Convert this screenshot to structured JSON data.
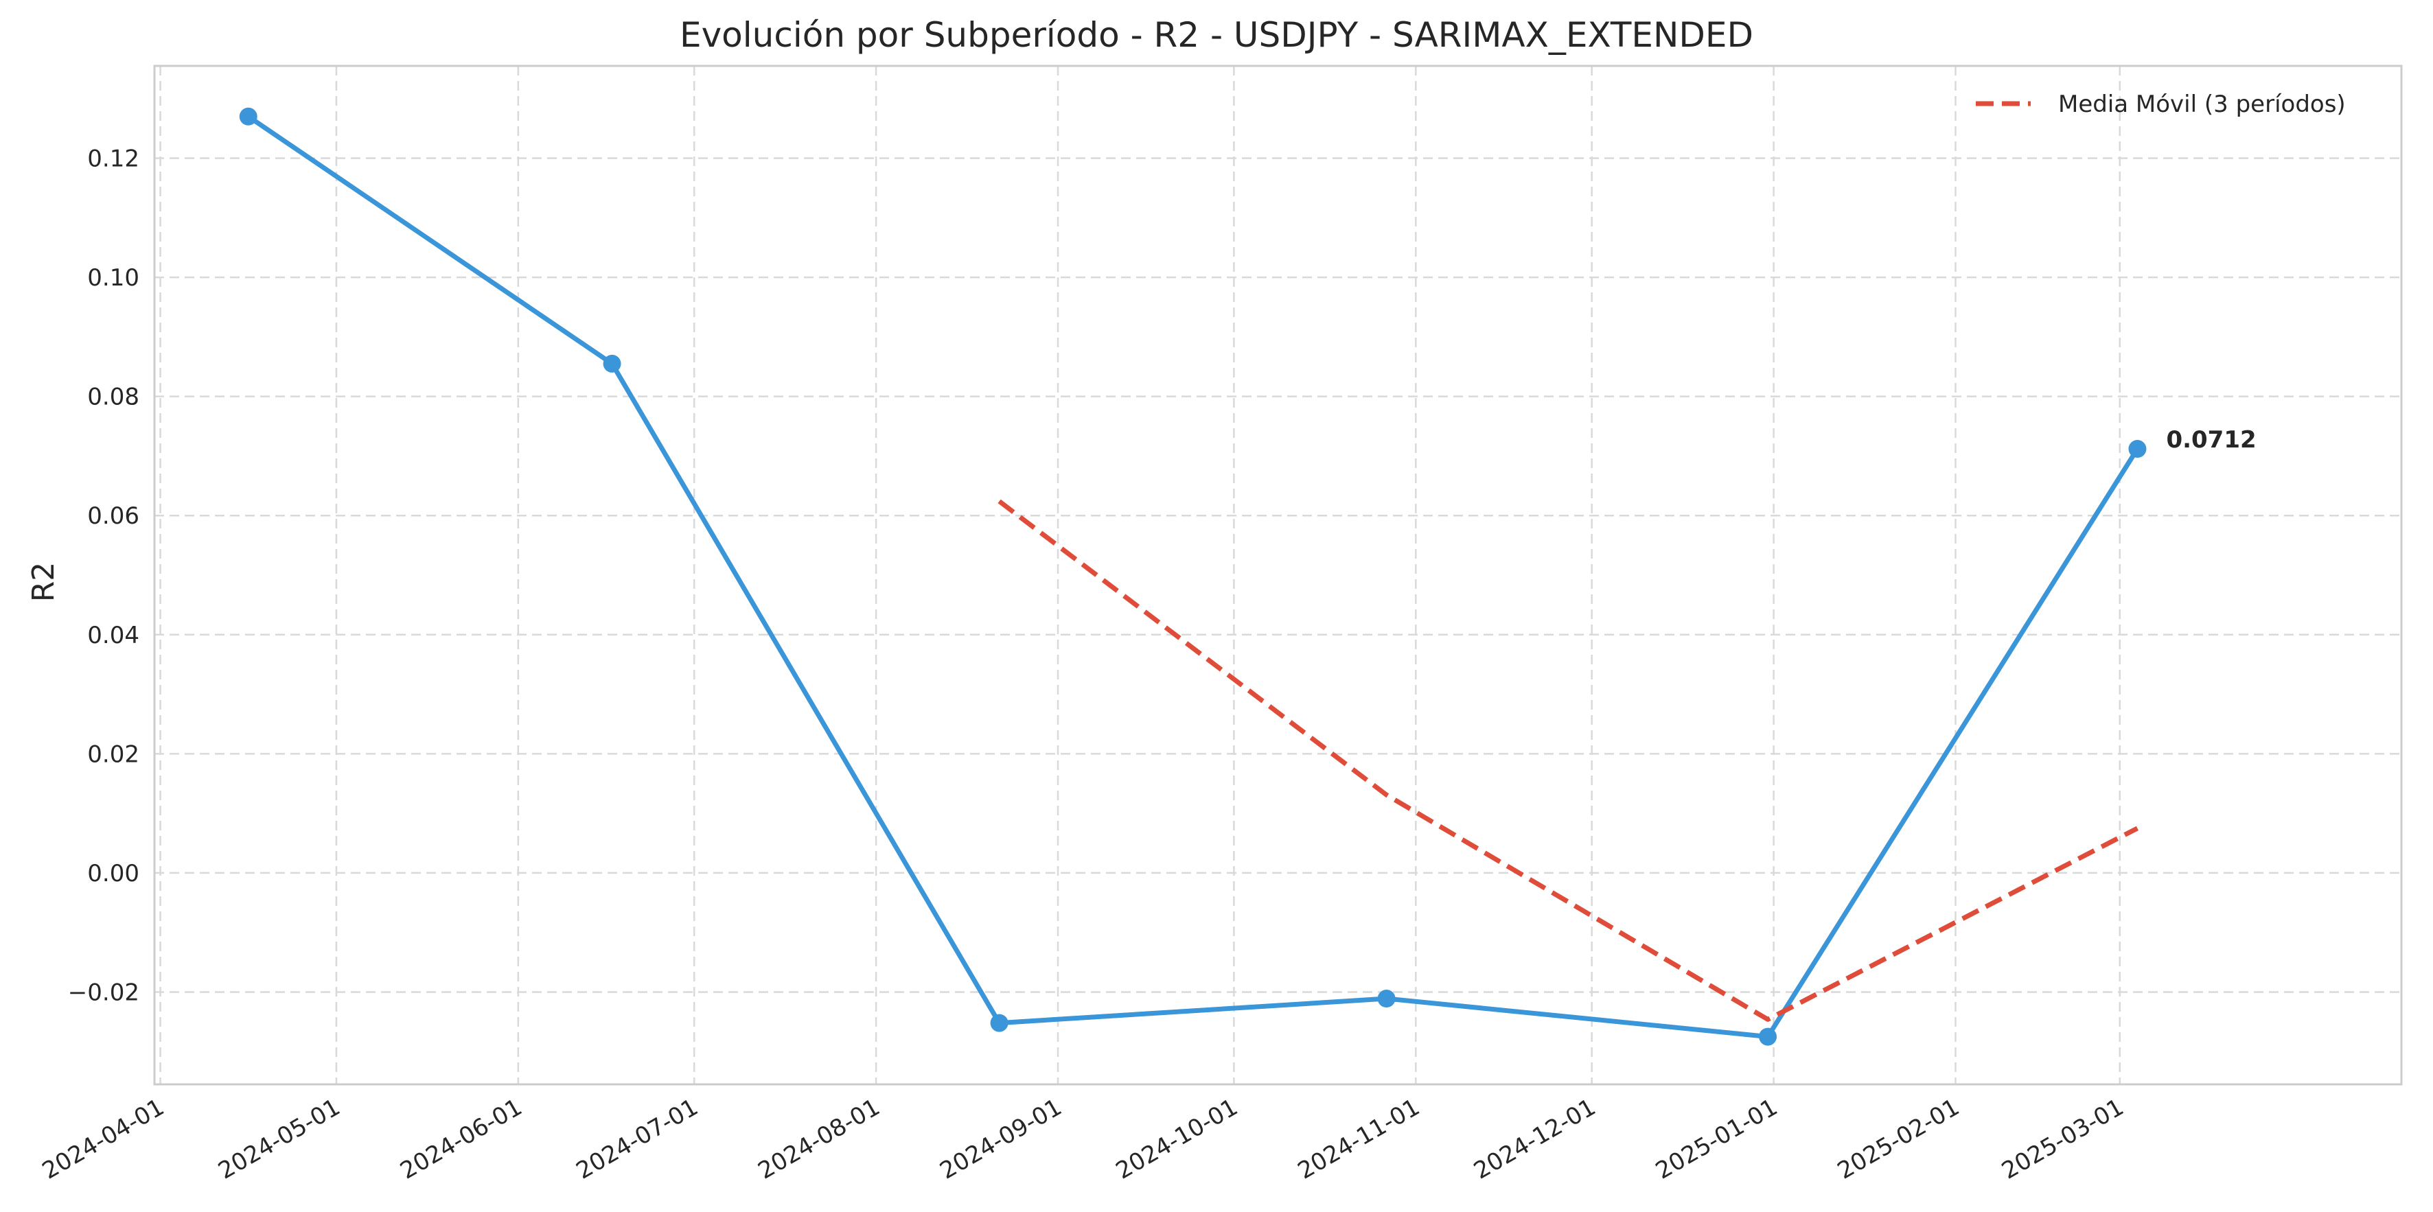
{
  "chart_data": {
    "type": "line",
    "title": "Evolución por Subperíodo - R2 - USDJPY - SARIMAX_EXTENDED",
    "xlabel": "",
    "ylabel": "R2",
    "xlim": [
      "2024-03-31",
      "2025-04-18"
    ],
    "ylim": [
      -0.0355,
      0.1355
    ],
    "x_ticks": [
      "2024-04-01",
      "2024-05-01",
      "2024-06-01",
      "2024-07-01",
      "2024-08-01",
      "2024-09-01",
      "2024-10-01",
      "2024-11-01",
      "2024-12-01",
      "2025-01-01",
      "2025-02-01",
      "2025-03-01"
    ],
    "y_ticks": [
      -0.02,
      0.0,
      0.02,
      0.04,
      0.06,
      0.08,
      0.1,
      0.12
    ],
    "y_tick_labels": [
      "−0.02",
      "0.00",
      "0.02",
      "0.04",
      "0.06",
      "0.08",
      "0.10",
      "0.12"
    ],
    "grid": true,
    "legend_position": "top-right",
    "series": [
      {
        "color": "#3a96d8",
        "marker": "circle",
        "points": [
          {
            "x": "2024-04-16",
            "y": 0.127
          },
          {
            "x": "2024-06-17",
            "y": 0.0855
          },
          {
            "x": "2024-08-22",
            "y": -0.0252
          },
          {
            "x": "2024-10-27",
            "y": -0.0211
          },
          {
            "x": "2024-12-31",
            "y": -0.0275
          },
          {
            "x": "2025-03-04",
            "y": 0.0712
          }
        ]
      },
      {
        "name": "Media Móvil (3 períodos)",
        "color": "#e04c3a",
        "dashed": true,
        "points": [
          {
            "x": "2024-08-22",
            "y": 0.0624
          },
          {
            "x": "2024-10-27",
            "y": 0.0131
          },
          {
            "x": "2024-12-31",
            "y": -0.0246
          },
          {
            "x": "2025-03-04",
            "y": 0.0075
          }
        ]
      }
    ],
    "annotations": [
      {
        "text": "0.0712",
        "x": "2025-03-04",
        "y": 0.0712
      }
    ]
  }
}
